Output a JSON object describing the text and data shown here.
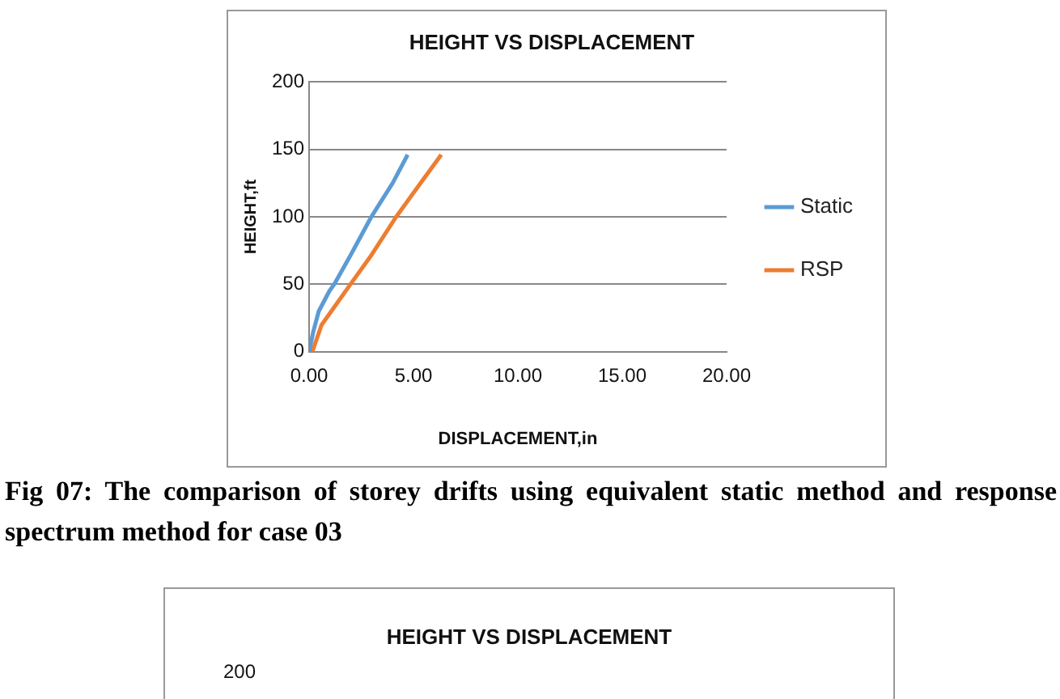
{
  "chart_data": [
    {
      "type": "line",
      "title": "HEIGHT VS DISPLACEMENT",
      "xlabel": "DISPLACEMENT,in",
      "ylabel": "HEIGHT,ft",
      "series": [
        {
          "name": "Static",
          "color": "#5b9bd5",
          "x": [
            0,
            0.2,
            0.46,
            0.97,
            1.2,
            2,
            2.98,
            4,
            4.72
          ],
          "values": [
            0,
            15,
            30,
            45,
            50,
            72,
            100,
            125,
            146
          ]
        },
        {
          "name": "RSP",
          "color": "#ed7d31",
          "x": [
            0.15,
            0.6,
            1.2,
            1.98,
            3,
            4.17,
            5.2,
            6.33
          ],
          "values": [
            0,
            20,
            33,
            50,
            72,
            100,
            122,
            146
          ]
        }
      ],
      "xlim": [
        0,
        20
      ],
      "xticks": [
        {
          "value": 0,
          "label": "0.00"
        },
        {
          "value": 5,
          "label": "5.00"
        },
        {
          "value": 10,
          "label": "10.00"
        },
        {
          "value": 15,
          "label": "15.00"
        },
        {
          "value": 20,
          "label": "20.00"
        }
      ],
      "ylim": [
        0,
        200
      ],
      "yticks": [
        0,
        50,
        100,
        150,
        200
      ],
      "grid": "y",
      "legend": "right",
      "marker": "none",
      "line_style": "solid",
      "annotations": [
        "Fig 07: The comparison of storey drifts using equivalent static method and response spectrum method for case 03"
      ]
    },
    {
      "type": "other",
      "title": "HEIGHT VS DISPLACEMENT",
      "annotations": [
        "200"
      ]
    }
  ]
}
